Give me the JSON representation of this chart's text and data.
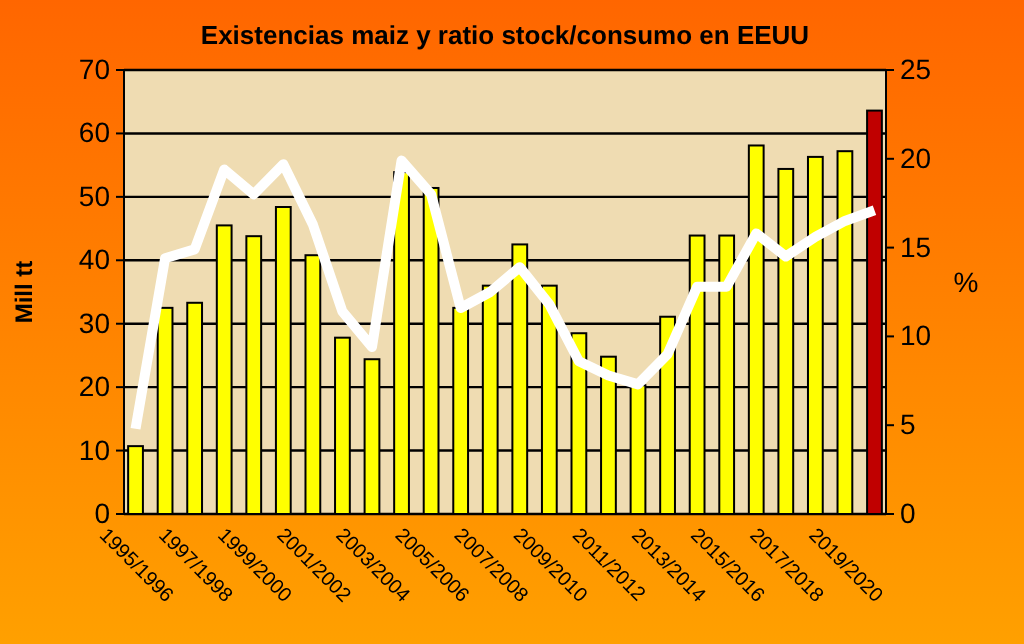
{
  "chart_data": {
    "type": "bar",
    "title": "Existencias maiz y ratio stock/consumo en EEUU",
    "ylabel": "Mill tt",
    "y2label": "%",
    "categories": [
      "1995/1996",
      null,
      "1997/1998",
      null,
      "1999/2000",
      null,
      "2001/2002",
      null,
      "2003/2004",
      null,
      "2005/2006",
      null,
      "2007/2008",
      null,
      "2009/2010",
      null,
      "2011/2012",
      null,
      "2013/2014",
      null,
      "2015/2016",
      null,
      "2017/2018",
      null,
      "2019/2020",
      null
    ],
    "series": [
      {
        "colors": [
          "#ffff00",
          "#ffff00",
          "#ffff00",
          "#ffff00",
          "#ffff00",
          "#ffff00",
          "#ffff00",
          "#ffff00",
          "#ffff00",
          "#ffff00",
          "#ffff00",
          "#ffff00",
          "#ffff00",
          "#ffff00",
          "#ffff00",
          "#ffff00",
          "#ffff00",
          "#ffff00",
          "#ffff00",
          "#ffff00",
          "#ffff00",
          "#ffff00",
          "#ffff00",
          "#ffff00",
          "#ffff00",
          "#c00000"
        ],
        "values": [
          10.7,
          32.5,
          33.3,
          45.5,
          43.8,
          48.4,
          40.8,
          27.8,
          24.4,
          53.9,
          51.4,
          32.5,
          36,
          42.5,
          36,
          28.5,
          24.8,
          20.3,
          31.1,
          43.9,
          43.9,
          58.1,
          54.4,
          56.3,
          57.2,
          63.6
        ]
      },
      {
        "type": "line",
        "axis": "y2",
        "color": "#ffffff",
        "values": [
          4.8,
          14.4,
          14.9,
          19.4,
          18,
          19.7,
          16.3,
          11.4,
          9.4,
          19.9,
          18,
          11.6,
          12.5,
          13.9,
          11.8,
          8.6,
          7.8,
          7.3,
          9,
          12.8,
          12.8,
          15.8,
          14.5,
          15.6,
          16.5,
          17.1
        ]
      }
    ],
    "ylim": [
      0,
      70
    ],
    "yticks": [
      0,
      10,
      20,
      30,
      40,
      50,
      60,
      70
    ],
    "y2lim": [
      0,
      25
    ],
    "y2ticks": [
      0,
      5,
      10,
      15,
      20,
      25
    ],
    "grid": "y",
    "marker": "none"
  }
}
